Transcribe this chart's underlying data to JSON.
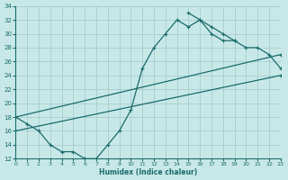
{
  "xlabel": "Humidex (Indice chaleur)",
  "bg_color": "#c8e8e8",
  "line_color": "#1a6b6b",
  "grid_color": "#a0c8c8",
  "xlim": [
    0,
    23
  ],
  "ylim": [
    12,
    34
  ],
  "xticks": [
    0,
    1,
    2,
    3,
    4,
    5,
    6,
    7,
    8,
    9,
    10,
    11,
    12,
    13,
    14,
    15,
    16,
    17,
    18,
    19,
    20,
    21,
    22,
    23
  ],
  "yticks": [
    12,
    14,
    16,
    18,
    20,
    22,
    24,
    26,
    28,
    30,
    32,
    34
  ],
  "series": [
    {
      "x": [
        0,
        1,
        2,
        3,
        4,
        5,
        6,
        7,
        8,
        9,
        10,
        11,
        12,
        13,
        14,
        15,
        16,
        17,
        18,
        19
      ],
      "y": [
        18,
        17,
        16,
        14,
        13,
        13,
        12,
        12,
        14,
        16,
        19,
        25,
        28,
        30,
        32,
        31,
        32,
        31,
        30,
        29
      ]
    },
    {
      "x": [
        0,
        23
      ],
      "y": [
        18,
        27
      ]
    },
    {
      "x": [
        0,
        23
      ],
      "y": [
        16,
        24
      ]
    },
    {
      "x": [
        15,
        16,
        17,
        18,
        19,
        20,
        21,
        22,
        23
      ],
      "y": [
        33,
        32,
        30,
        29,
        29,
        28,
        28,
        27,
        25
      ]
    }
  ]
}
